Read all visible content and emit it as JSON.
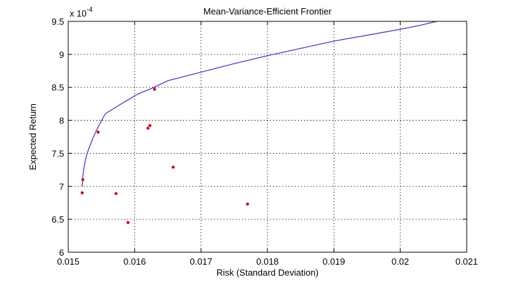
{
  "chart_data": {
    "type": "line",
    "title": "Mean-Variance-Efficient Frontier",
    "xlabel": "Risk (Standard Deviation)",
    "ylabel": "Expected Return",
    "y_exponent_label": "x 10",
    "y_exponent_power": "-4",
    "xlim": [
      0.015,
      0.021
    ],
    "ylim": [
      6,
      9.5
    ],
    "x_ticks": [
      0.015,
      0.016,
      0.017,
      0.018,
      0.019,
      0.02,
      0.021
    ],
    "x_tick_labels": [
      "0.015",
      "0.016",
      "0.017",
      "0.018",
      "0.019",
      "0.02",
      "0.021"
    ],
    "y_ticks": [
      6,
      6.5,
      7,
      7.5,
      8,
      8.5,
      9,
      9.5
    ],
    "y_tick_labels": [
      "6",
      "6.5",
      "7",
      "7.5",
      "8",
      "8.5",
      "9",
      "9.5"
    ],
    "grid": true,
    "series": [
      {
        "kind": "line",
        "color": "#3333cc",
        "x": [
          0.01521,
          0.01522,
          0.01524,
          0.01527,
          0.01532,
          0.01538,
          0.01546,
          0.01556,
          0.01575,
          0.01605,
          0.01625,
          0.0165,
          0.017,
          0.0175,
          0.018,
          0.0185,
          0.019,
          0.0195,
          0.02,
          0.0203,
          0.02055
        ],
        "y": [
          7.0,
          7.15,
          7.3,
          7.45,
          7.6,
          7.75,
          7.92,
          8.1,
          8.22,
          8.4,
          8.48,
          8.6,
          8.73,
          8.86,
          8.98,
          9.09,
          9.2,
          9.29,
          9.38,
          9.44,
          9.5
        ]
      },
      {
        "kind": "scatter",
        "color": "#dd0000",
        "x": [
          0.01522,
          0.01521,
          0.01545,
          0.01572,
          0.0159,
          0.0162,
          0.01623,
          0.0163,
          0.01658,
          0.0177
        ],
        "y": [
          7.1,
          6.9,
          7.82,
          6.89,
          6.45,
          7.88,
          7.92,
          8.47,
          7.29,
          6.73
        ]
      }
    ]
  }
}
